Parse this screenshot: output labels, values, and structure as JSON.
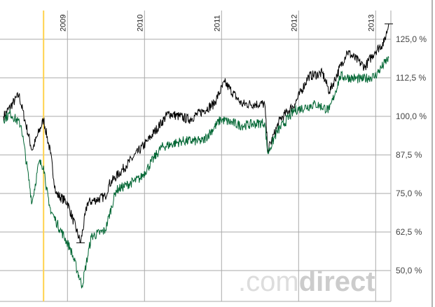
{
  "chart_data": {
    "type": "line",
    "title": "",
    "xlabel": "",
    "ylabel": "",
    "xlim": [
      2008.17,
      2013.2
    ],
    "ylim": [
      40,
      135
    ],
    "y_ticks": [
      50,
      62.5,
      75,
      87.5,
      100,
      112.5,
      125
    ],
    "y_tick_labels": [
      "50,0 %",
      "62,5 %",
      "75,0 %",
      "87,5 %",
      "100,0 %",
      "112,5 %",
      "125,0 %"
    ],
    "x_ticks": [
      2009,
      2010,
      2011,
      2012,
      2013
    ],
    "x_tick_labels": [
      "2009",
      "2010",
      "2011",
      "2012",
      "2013"
    ],
    "grid": true,
    "marker_line_x": 2008.69,
    "watermark": ".comdirect",
    "series": [
      {
        "name": "black",
        "color": "#000000",
        "points": [
          [
            2008.17,
            100
          ],
          [
            2008.37,
            107
          ],
          [
            2008.54,
            89
          ],
          [
            2008.69,
            99
          ],
          [
            2008.78,
            88
          ],
          [
            2008.85,
            75
          ],
          [
            2009.0,
            72
          ],
          [
            2009.17,
            59
          ],
          [
            2009.26,
            72
          ],
          [
            2009.49,
            74
          ],
          [
            2009.54,
            78
          ],
          [
            2009.76,
            84
          ],
          [
            2010.04,
            92
          ],
          [
            2010.31,
            101
          ],
          [
            2010.58,
            99
          ],
          [
            2010.9,
            104
          ],
          [
            2011.04,
            111
          ],
          [
            2011.26,
            104
          ],
          [
            2011.56,
            104
          ],
          [
            2011.6,
            89
          ],
          [
            2011.76,
            99
          ],
          [
            2011.95,
            104
          ],
          [
            2012.13,
            113
          ],
          [
            2012.31,
            114
          ],
          [
            2012.4,
            108
          ],
          [
            2012.63,
            121
          ],
          [
            2012.86,
            116
          ],
          [
            2012.99,
            121
          ],
          [
            2013.11,
            124
          ],
          [
            2013.17,
            130
          ]
        ],
        "annotations": {
          "low": 59,
          "high": 130
        }
      },
      {
        "name": "green",
        "color": "#006633",
        "points": [
          [
            2008.17,
            99
          ],
          [
            2008.26,
            101
          ],
          [
            2008.4,
            97
          ],
          [
            2008.54,
            72
          ],
          [
            2008.63,
            85
          ],
          [
            2008.69,
            84
          ],
          [
            2008.76,
            71
          ],
          [
            2008.85,
            66
          ],
          [
            2009.04,
            57
          ],
          [
            2009.19,
            45
          ],
          [
            2009.31,
            61
          ],
          [
            2009.49,
            63
          ],
          [
            2009.63,
            76
          ],
          [
            2009.95,
            80
          ],
          [
            2010.22,
            90
          ],
          [
            2010.49,
            92
          ],
          [
            2010.76,
            92
          ],
          [
            2010.99,
            99
          ],
          [
            2011.26,
            97
          ],
          [
            2011.56,
            98
          ],
          [
            2011.6,
            88
          ],
          [
            2011.72,
            95
          ],
          [
            2011.95,
            102
          ],
          [
            2012.22,
            104
          ],
          [
            2012.4,
            102
          ],
          [
            2012.54,
            113
          ],
          [
            2012.81,
            112
          ],
          [
            2012.99,
            113
          ],
          [
            2013.17,
            119
          ]
        ]
      }
    ]
  }
}
